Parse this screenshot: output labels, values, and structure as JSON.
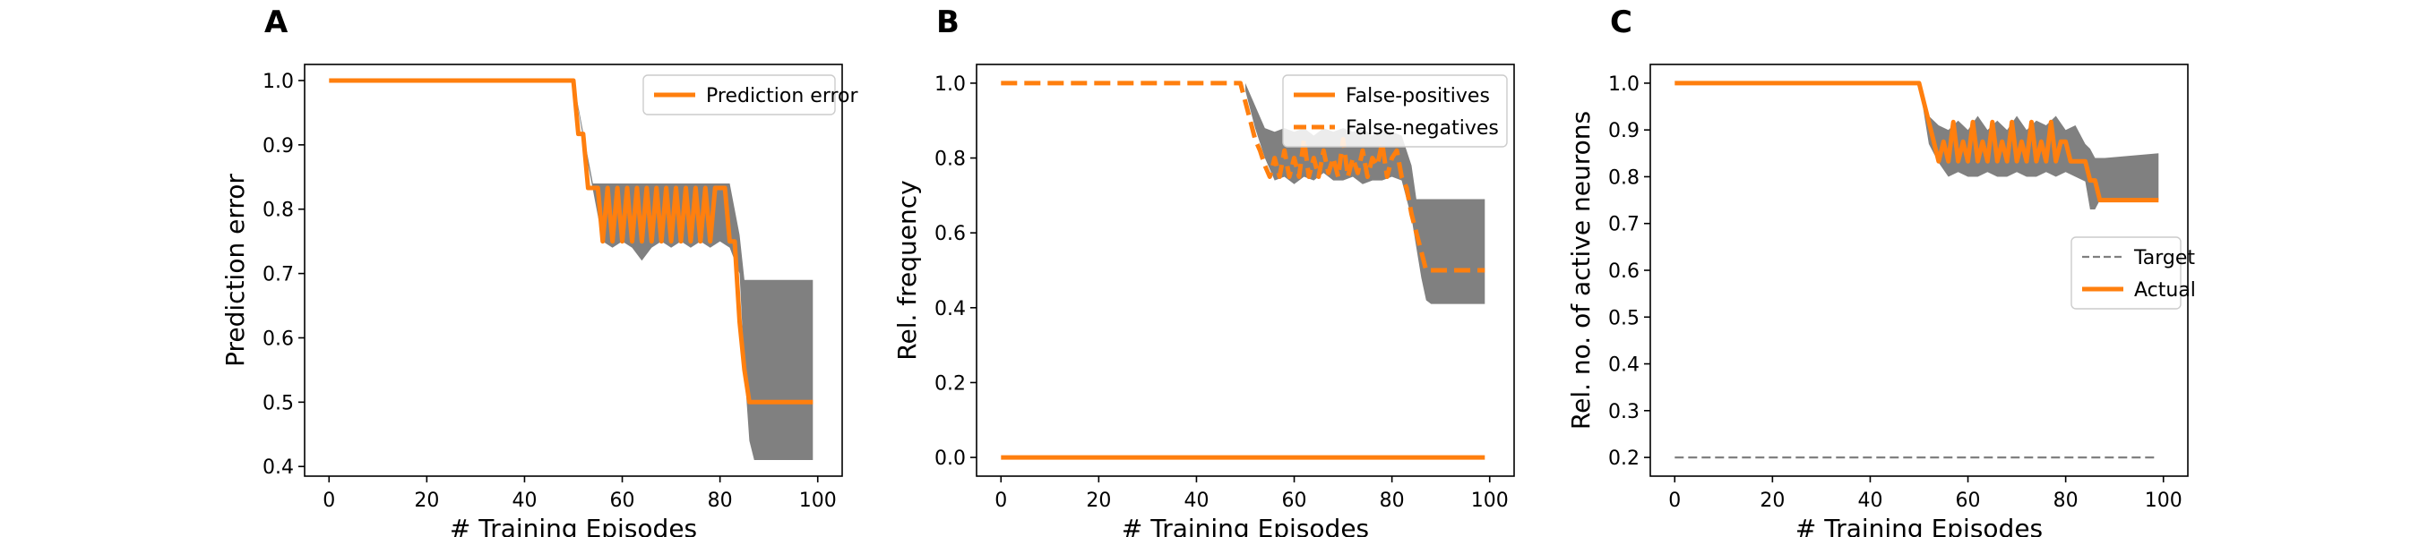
{
  "colors": {
    "orange": "#ff7f0e",
    "band": "#808080",
    "target": "#808080"
  },
  "chart_data": [
    {
      "panel": "A",
      "type": "line",
      "xlabel": "# Training Episodes",
      "ylabel": "Prediction error",
      "xlim": [
        -5,
        105
      ],
      "ylim": [
        0.385,
        1.025
      ],
      "xticks": [
        0,
        20,
        40,
        60,
        80,
        100
      ],
      "xtick_labels": [
        "0",
        "20",
        "40",
        "60",
        "80",
        "100"
      ],
      "yticks": [
        0.4,
        0.5,
        0.6,
        0.7,
        0.8,
        0.9,
        1.0
      ],
      "ytick_labels": [
        "0.4",
        "0.5",
        "0.6",
        "0.7",
        "0.8",
        "0.9",
        "1.0"
      ],
      "grid": false,
      "legend": {
        "position": "top-right",
        "entries": [
          {
            "label": "Prediction error",
            "style": "solid"
          }
        ]
      },
      "series": [
        {
          "name": "Prediction error",
          "style": "solid",
          "x": [
            0,
            50,
            51,
            52,
            53,
            54,
            55,
            56,
            57,
            58,
            59,
            60,
            61,
            62,
            63,
            64,
            65,
            66,
            67,
            68,
            69,
            70,
            71,
            72,
            73,
            74,
            75,
            76,
            77,
            78,
            79,
            80,
            81,
            82,
            83,
            84,
            85,
            86,
            87,
            88,
            99
          ],
          "y": [
            1.0,
            1.0,
            0.917,
            0.917,
            0.833,
            0.833,
            0.833,
            0.75,
            0.833,
            0.75,
            0.833,
            0.75,
            0.833,
            0.75,
            0.833,
            0.75,
            0.833,
            0.75,
            0.833,
            0.75,
            0.833,
            0.75,
            0.833,
            0.75,
            0.833,
            0.75,
            0.833,
            0.75,
            0.833,
            0.75,
            0.833,
            0.833,
            0.833,
            0.75,
            0.75,
            0.625,
            0.55,
            0.5,
            0.5,
            0.5,
            0.5
          ]
        }
      ],
      "band": {
        "x": [
          50,
          52,
          54,
          56,
          58,
          60,
          62,
          64,
          66,
          68,
          70,
          72,
          74,
          76,
          78,
          80,
          82,
          84,
          85,
          86,
          87,
          88,
          99
        ],
        "upper": [
          1.0,
          0.92,
          0.84,
          0.84,
          0.84,
          0.84,
          0.84,
          0.84,
          0.84,
          0.84,
          0.84,
          0.84,
          0.84,
          0.84,
          0.84,
          0.84,
          0.84,
          0.76,
          0.69,
          0.69,
          0.69,
          0.69,
          0.69
        ],
        "lower": [
          1.0,
          0.91,
          0.83,
          0.75,
          0.74,
          0.75,
          0.74,
          0.72,
          0.74,
          0.75,
          0.74,
          0.75,
          0.74,
          0.75,
          0.74,
          0.75,
          0.74,
          0.7,
          0.55,
          0.44,
          0.41,
          0.41,
          0.41
        ]
      }
    },
    {
      "panel": "B",
      "type": "line",
      "xlabel": "# Training Episodes",
      "ylabel": "Rel. frequency",
      "xlim": [
        -5,
        105
      ],
      "ylim": [
        -0.05,
        1.05
      ],
      "xticks": [
        0,
        20,
        40,
        60,
        80,
        100
      ],
      "xtick_labels": [
        "0",
        "20",
        "40",
        "60",
        "80",
        "100"
      ],
      "yticks": [
        0.0,
        0.2,
        0.4,
        0.6,
        0.8,
        1.0
      ],
      "ytick_labels": [
        "0.0",
        "0.2",
        "0.4",
        "0.6",
        "0.8",
        "1.0"
      ],
      "grid": false,
      "legend": {
        "position": "top-right",
        "entries": [
          {
            "label": "False-positives",
            "style": "solid"
          },
          {
            "label": "False-negatives",
            "style": "dashed"
          }
        ]
      },
      "series": [
        {
          "name": "False-positives",
          "style": "solid",
          "x": [
            0,
            99
          ],
          "y": [
            0.0,
            0.0
          ]
        },
        {
          "name": "False-negatives",
          "style": "dashed",
          "x": [
            0,
            49,
            50,
            51,
            52,
            53,
            54,
            55,
            56,
            57,
            58,
            59,
            60,
            61,
            62,
            63,
            64,
            65,
            66,
            67,
            68,
            69,
            70,
            71,
            72,
            73,
            74,
            75,
            76,
            77,
            78,
            79,
            80,
            81,
            82,
            83,
            84,
            85,
            86,
            87,
            88,
            99
          ],
          "y": [
            1.0,
            1.0,
            0.95,
            0.9,
            0.85,
            0.82,
            0.78,
            0.75,
            0.8,
            0.75,
            0.82,
            0.75,
            0.8,
            0.75,
            0.85,
            0.75,
            0.8,
            0.75,
            0.82,
            0.76,
            0.8,
            0.75,
            0.85,
            0.75,
            0.8,
            0.76,
            0.82,
            0.75,
            0.8,
            0.78,
            0.84,
            0.75,
            0.8,
            0.82,
            0.75,
            0.72,
            0.65,
            0.6,
            0.55,
            0.5,
            0.5,
            0.5
          ]
        }
      ],
      "band": {
        "x": [
          50,
          52,
          54,
          56,
          58,
          60,
          62,
          64,
          66,
          68,
          70,
          72,
          74,
          76,
          78,
          80,
          82,
          84,
          85,
          86,
          87,
          88,
          99
        ],
        "upper": [
          1.0,
          0.94,
          0.88,
          0.87,
          0.88,
          0.87,
          0.88,
          0.86,
          0.88,
          0.87,
          0.88,
          0.87,
          0.88,
          0.86,
          0.88,
          0.87,
          0.86,
          0.78,
          0.69,
          0.69,
          0.69,
          0.69,
          0.69
        ],
        "lower": [
          0.98,
          0.88,
          0.8,
          0.74,
          0.75,
          0.73,
          0.75,
          0.74,
          0.76,
          0.74,
          0.74,
          0.75,
          0.73,
          0.74,
          0.74,
          0.75,
          0.74,
          0.64,
          0.56,
          0.48,
          0.42,
          0.41,
          0.41
        ]
      }
    },
    {
      "panel": "C",
      "type": "line",
      "xlabel": "# Training Episodes",
      "ylabel": "Rel. no. of active neurons",
      "xlim": [
        -5,
        105
      ],
      "ylim": [
        0.16,
        1.04
      ],
      "xticks": [
        0,
        20,
        40,
        60,
        80,
        100
      ],
      "xtick_labels": [
        "0",
        "20",
        "40",
        "60",
        "80",
        "100"
      ],
      "yticks": [
        0.2,
        0.3,
        0.4,
        0.5,
        0.6,
        0.7,
        0.8,
        0.9,
        1.0
      ],
      "ytick_labels": [
        "0.2",
        "0.3",
        "0.4",
        "0.5",
        "0.6",
        "0.7",
        "0.8",
        "0.9",
        "1.0"
      ],
      "grid": false,
      "legend": {
        "position": "center-right",
        "entries": [
          {
            "label": "Target",
            "style": "dashed-gray"
          },
          {
            "label": "Actual",
            "style": "solid"
          }
        ]
      },
      "series": [
        {
          "name": "Target",
          "style": "dashed-gray",
          "x": [
            0,
            99
          ],
          "y": [
            0.2,
            0.2
          ]
        },
        {
          "name": "Actual",
          "style": "solid",
          "x": [
            0,
            50,
            51,
            52,
            53,
            54,
            55,
            56,
            57,
            58,
            59,
            60,
            61,
            62,
            63,
            64,
            65,
            66,
            67,
            68,
            69,
            70,
            71,
            72,
            73,
            74,
            75,
            76,
            77,
            78,
            79,
            80,
            81,
            82,
            83,
            84,
            85,
            86,
            87,
            88,
            99
          ],
          "y": [
            1.0,
            1.0,
            0.958,
            0.917,
            0.875,
            0.833,
            0.875,
            0.833,
            0.917,
            0.833,
            0.875,
            0.833,
            0.917,
            0.833,
            0.875,
            0.833,
            0.917,
            0.833,
            0.875,
            0.833,
            0.917,
            0.833,
            0.875,
            0.833,
            0.917,
            0.833,
            0.875,
            0.833,
            0.917,
            0.833,
            0.875,
            0.875,
            0.833,
            0.833,
            0.833,
            0.833,
            0.792,
            0.792,
            0.75,
            0.75,
            0.75
          ]
        }
      ],
      "band": {
        "x": [
          50,
          52,
          54,
          56,
          58,
          60,
          62,
          64,
          66,
          68,
          70,
          72,
          74,
          76,
          78,
          80,
          82,
          84,
          85,
          86,
          87,
          88,
          99
        ],
        "upper": [
          1.0,
          0.93,
          0.91,
          0.9,
          0.92,
          0.9,
          0.93,
          0.9,
          0.92,
          0.9,
          0.93,
          0.9,
          0.92,
          0.91,
          0.93,
          0.9,
          0.91,
          0.87,
          0.86,
          0.84,
          0.84,
          0.84,
          0.85
        ],
        "lower": [
          1.0,
          0.87,
          0.83,
          0.8,
          0.81,
          0.8,
          0.8,
          0.81,
          0.8,
          0.8,
          0.81,
          0.8,
          0.8,
          0.81,
          0.8,
          0.81,
          0.8,
          0.79,
          0.73,
          0.73,
          0.75,
          0.75,
          0.75
        ]
      }
    }
  ]
}
